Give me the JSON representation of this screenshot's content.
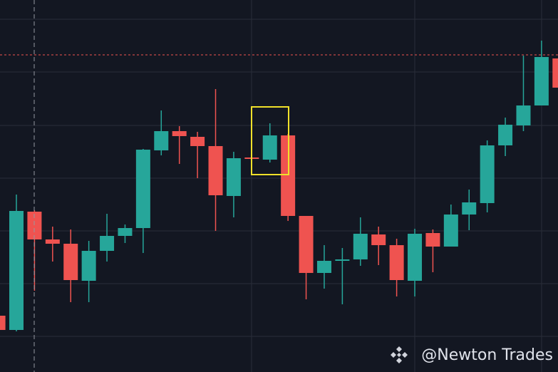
{
  "chart_data": {
    "type": "candlestick",
    "open": [
      79,
      59,
      225,
      186,
      180,
      128,
      170,
      191,
      202,
      311,
      338,
      330,
      317,
      247,
      301,
      298,
      332,
      219,
      139,
      156,
      158,
      193,
      178,
      128,
      195,
      176,
      221,
      237,
      318,
      346,
      374,
      440
    ],
    "high": [
      79,
      249,
      227,
      204,
      200,
      184,
      222,
      207,
      313,
      367,
      345,
      337,
      397,
      309,
      301,
      349,
      334,
      219,
      178,
      174,
      217,
      204,
      187,
      201,
      200,
      235,
      256,
      325,
      357,
      444,
      465,
      444
    ],
    "low": [
      59,
      57,
      114,
      155,
      98,
      98,
      155,
      181,
      167,
      304,
      292,
      272,
      198,
      217,
      299,
      294,
      212,
      102,
      117,
      95,
      149,
      150,
      106,
      106,
      140,
      176,
      199,
      224,
      303,
      338,
      374,
      399
    ],
    "close": [
      59,
      226,
      186,
      180,
      129,
      170,
      191,
      202,
      312,
      338,
      331,
      317,
      248,
      300,
      299,
      332,
      219,
      139,
      156,
      158,
      194,
      178,
      129,
      194,
      176,
      221,
      238,
      318,
      347,
      374,
      442,
      399
    ],
    "ylim": [
      0,
      522
    ],
    "yticks": [
      50,
      124,
      198,
      272,
      346,
      421,
      495
    ],
    "hline": 445,
    "up_color": "#26a69a",
    "down_color": "#ef5350",
    "hline_color": "#ef5350",
    "grid": true
  },
  "watermark": "@Newton Trades"
}
